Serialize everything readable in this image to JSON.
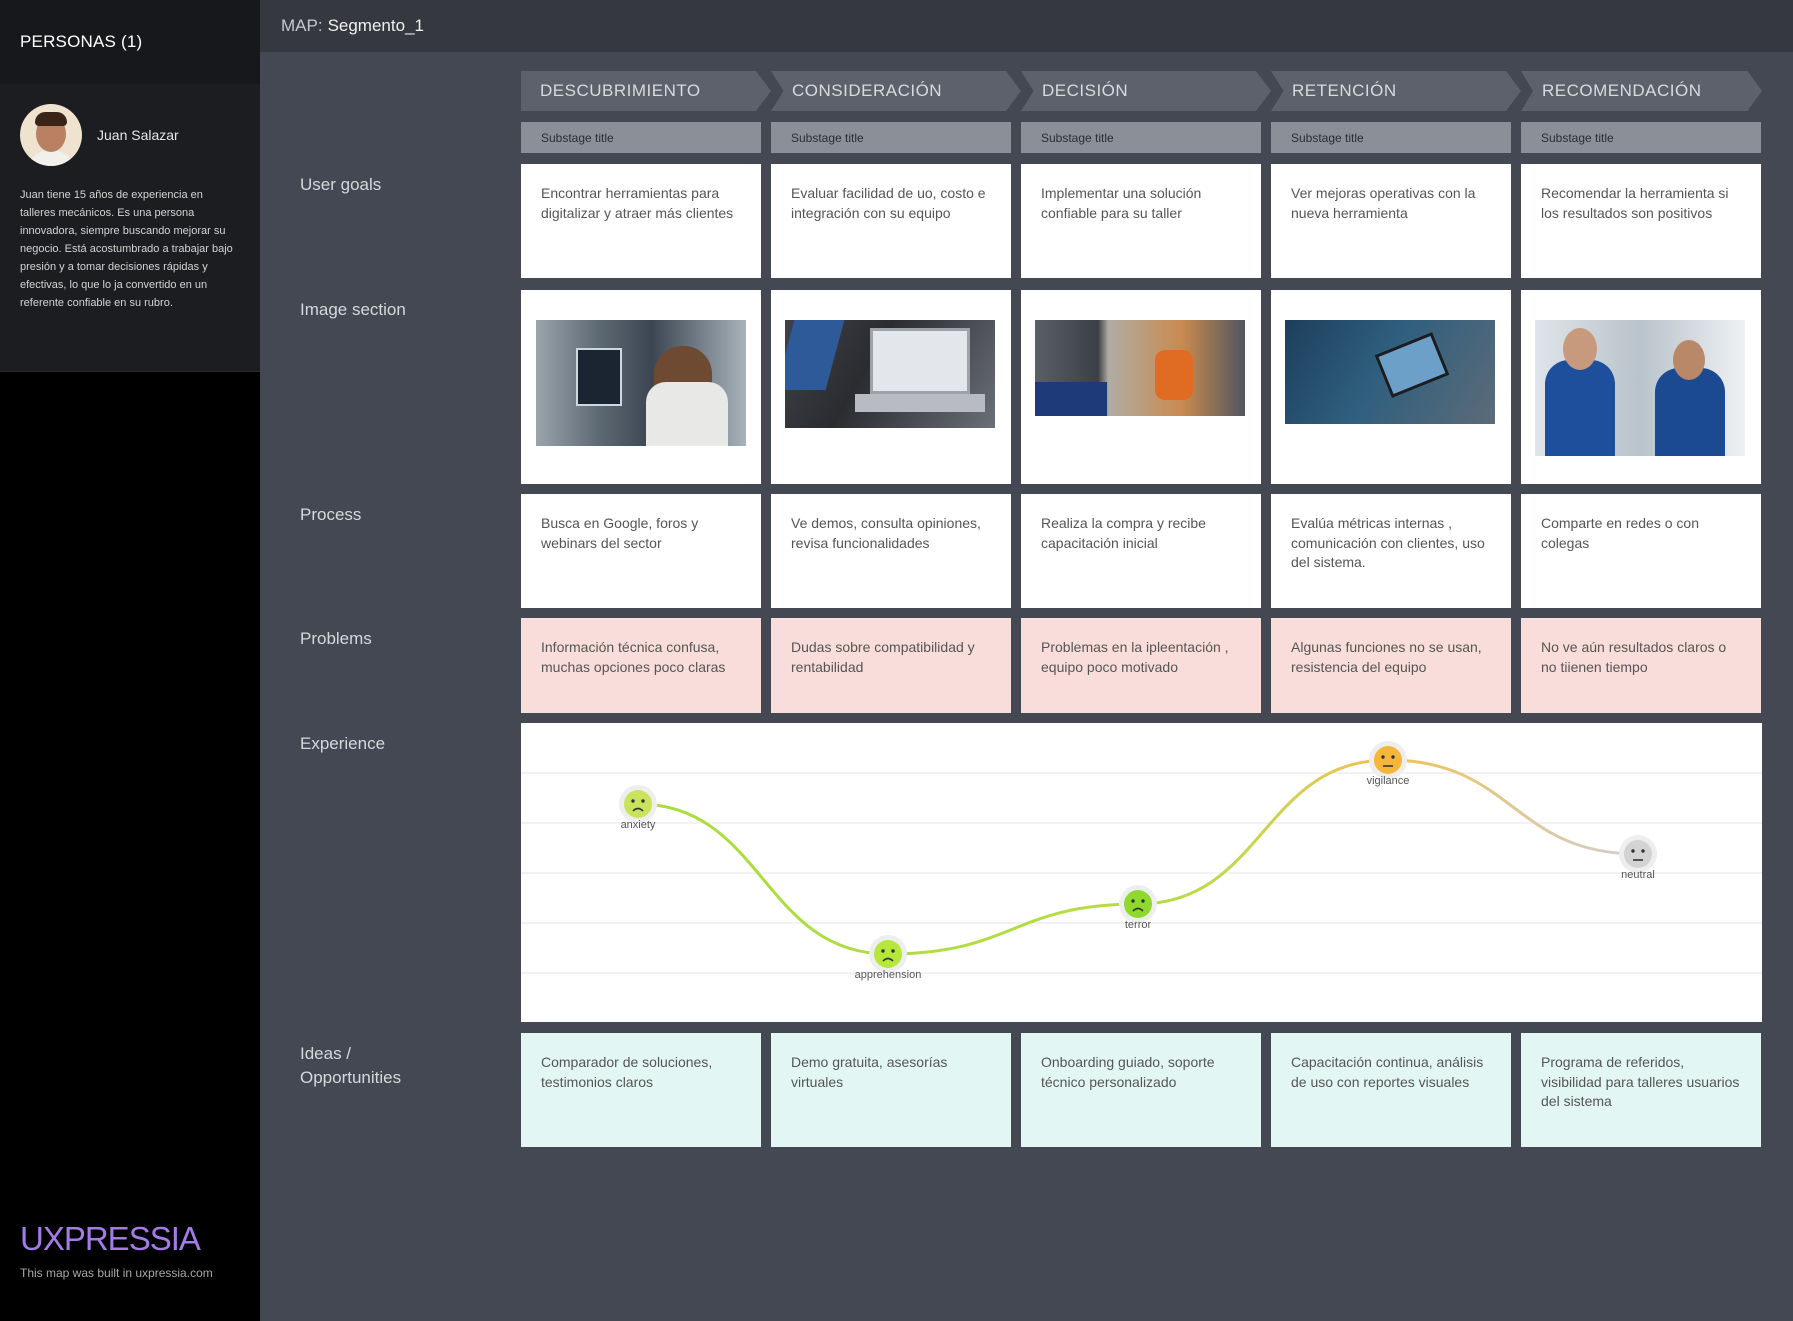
{
  "sidebar": {
    "header": "PERSONAS (1)",
    "persona": {
      "name": "Juan Salazar",
      "description": "Juan tiene 15 años de experiencia en talleres mecánicos. Es una persona innovadora, siempre buscando mejorar su negocio. Está acostumbrado a trabajar bajo presión y a tomar decisiones rápidas y efectivas, lo que lo ja convertido en un referente confiable en su rubro."
    },
    "brand": "UXPRESSIA",
    "brand_note": "This map was built in uxpressia.com"
  },
  "topbar": {
    "label": "MAP:",
    "name": "Segmento_1"
  },
  "stages": [
    {
      "title": "DESCUBRIMIENTO",
      "substage": "Substage title"
    },
    {
      "title": "CONSIDERACIÓN",
      "substage": "Substage title"
    },
    {
      "title": "DECISIÓN",
      "substage": "Substage title"
    },
    {
      "title": "RETENCIÓN",
      "substage": "Substage title"
    },
    {
      "title": "RECOMENDACIÓN",
      "substage": "Substage title"
    }
  ],
  "rows": {
    "user_goals": {
      "label": "User goals",
      "cells": [
        "Encontrar herramientas para digitalizar y atraer más clientes",
        "Evaluar facilidad de uo, costo e integración con su equipo",
        "Implementar una solución confiable para su taller",
        "Ver mejoras operativas con la nueva herramienta",
        "Recomendar la herramienta si los resultados son positivos"
      ]
    },
    "image_section": {
      "label": "Image section"
    },
    "process": {
      "label": "Process",
      "cells": [
        "Busca en Google, foros y webinars del sector",
        "Ve demos, consulta opiniones, revisa funcionalidades",
        "Realiza la compra y recibe capacitación inicial",
        "Evalúa métricas internas , comunicación con clientes, uso del sistema.",
        "Comparte en redes o con colegas"
      ]
    },
    "problems": {
      "label": "Problems",
      "cells": [
        "Información técnica confusa, muchas opciones poco claras",
        "Dudas sobre compatibilidad y rentabilidad",
        "Problemas en la ipleentación , equipo poco motivado",
        "Algunas funciones no se usan, resistencia del equipo",
        "No ve aún resultados claros o no tiienen tiempo"
      ]
    },
    "experience": {
      "label": "Experience"
    },
    "ideas": {
      "label_line1": "Ideas /",
      "label_line2": "Opportunities",
      "cells": [
        "Comparador de soluciones, testimonios claros",
        "Demo gratuita, asesorías virtuales",
        "Onboarding guiado, soporte técnico personalizado",
        "Capacitación continua, análisis de uso con reportes visuales",
        "Programa de referidos, visibilidad para talleres usuarios del sistema"
      ]
    }
  },
  "experience_points": [
    {
      "emotion": "anxiety",
      "level": 4,
      "color": "#c9e45a"
    },
    {
      "emotion": "apprehension",
      "level": 1,
      "color": "#b5e83a"
    },
    {
      "emotion": "terror",
      "level": 2,
      "color": "#8fd92c"
    },
    {
      "emotion": "vigilance",
      "level": 5,
      "color": "#f4b73a"
    },
    {
      "emotion": "neutral",
      "level": 3,
      "color": "#d3d3d3"
    }
  ]
}
